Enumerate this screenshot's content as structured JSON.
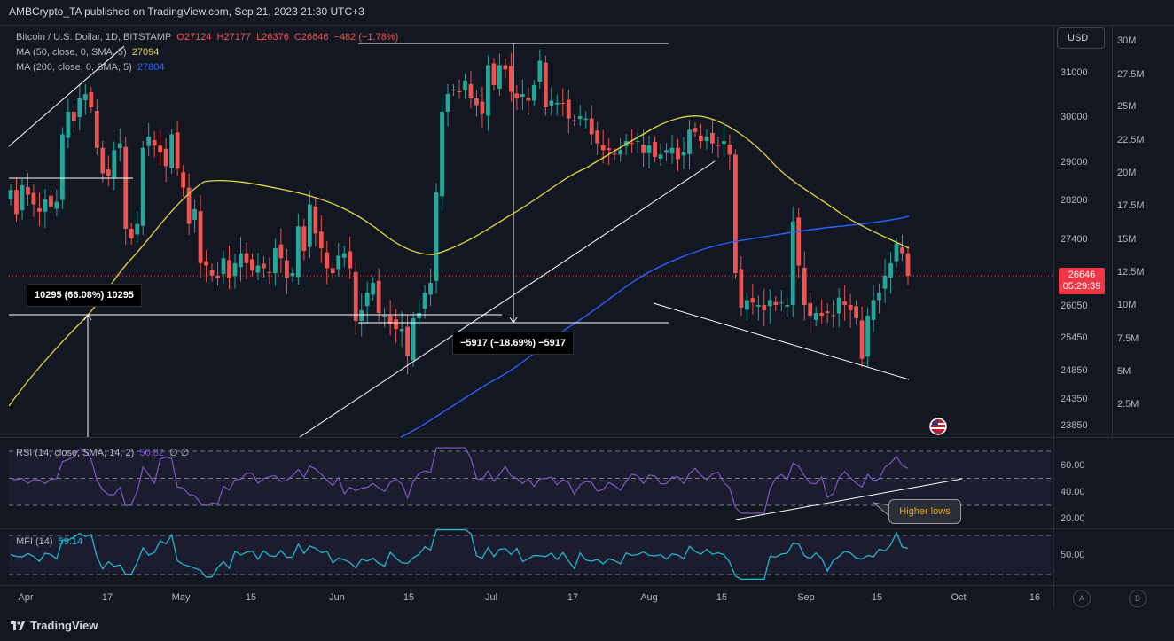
{
  "header": {
    "publisher_line": "AMBCrypto_TA published on TradingView.com, Sep 21, 2023 21:30 UTC+3"
  },
  "legend": {
    "symbol": "Bitcoin / U.S. Dollar, 1D, BITSTAMP",
    "ohlc": {
      "o": "O27124",
      "h": "H27177",
      "l": "L26376",
      "c": "C26646",
      "chg": "−482 (−1.78%)"
    },
    "ma50_label": "MA (50, close, 0, SMA, 5)",
    "ma50_value": "27094",
    "ma200_label": "MA (200, close, 0, SMA, 5)",
    "ma200_value": "27804",
    "rsi_label": "RSI (14, close, SMA, 14, 2)",
    "rsi_value": "50.82",
    "rsi_extra": "∅  ∅",
    "mfi_label": "MFI (14)",
    "mfi_value": "59.14"
  },
  "currency_button": "USD",
  "price_tag": {
    "price": "26646",
    "countdown": "05:29:39"
  },
  "measurements": {
    "left": "10295 (66.08%) 10295",
    "middle": "−5917 (−18.69%) −5917"
  },
  "annotation": "Higher lows",
  "footer": {
    "brand": "TradingView"
  },
  "bottom_buttons": {
    "a": "A",
    "b": "B"
  },
  "colors": {
    "background": "#131722",
    "up": "#26a69a",
    "down": "#ef5350",
    "ma50": "#e6d63c",
    "ma200": "#2962ff",
    "rsi": "#7e57c2",
    "mfi": "#22c0d6",
    "annotation": "#f7a600"
  },
  "chart_data": {
    "type": "candlestick",
    "price_axis_ticks": [
      "31000",
      "30000",
      "29000",
      "28200",
      "27400",
      "26650",
      "26050",
      "25450",
      "24850",
      "24350",
      "23850"
    ],
    "volume_axis_ticks": [
      "30M",
      "27.5M",
      "25M",
      "22.5M",
      "20M",
      "17.5M",
      "15M",
      "12.5M",
      "10M",
      "7.5M",
      "5M",
      "2.5M"
    ],
    "rsi_axis_ticks": [
      "60.00",
      "40.00",
      "20.00"
    ],
    "mfi_axis_ticks": [
      "50.00"
    ],
    "time_axis_ticks": [
      "Apr",
      "17",
      "May",
      "15",
      "Jun",
      "15",
      "Jul",
      "17",
      "Aug",
      "15",
      "Sep",
      "15",
      "Oct",
      "16"
    ],
    "last_price": 26646,
    "closes": [
      28400,
      27900,
      28500,
      28300,
      28100,
      27950,
      28200,
      28050,
      28150,
      29600,
      30100,
      29900,
      30400,
      30500,
      30200,
      29300,
      28750,
      28700,
      29250,
      29400,
      27600,
      27400,
      27700,
      29300,
      29550,
      29350,
      29200,
      28900,
      29600,
      28850,
      28450,
      27700,
      28000,
      26900,
      26850,
      26650,
      26600,
      27000,
      26600,
      26900,
      27100,
      26900,
      26750,
      26850,
      26800,
      26700,
      27200,
      27000,
      26600,
      26700,
      27650,
      27150,
      28100,
      27500,
      27200,
      26800,
      26700,
      27050,
      27100,
      26800,
      25750,
      25950,
      26300,
      26500,
      25900,
      25850,
      25700,
      25600,
      25600,
      25100,
      25800,
      25900,
      26300,
      26500,
      28350,
      30100,
      30500,
      30600,
      30550,
      30800,
      30400,
      30250,
      30050,
      31150,
      30700,
      31150,
      31050,
      30550,
      30400,
      30500,
      30350,
      30700,
      31250,
      30200,
      30350,
      30300,
      30290,
      29950,
      29900,
      30000,
      29950,
      29600,
      29400,
      29250,
      29250,
      29150,
      29250,
      29450,
      29400,
      29450,
      29180,
      29350,
      29100,
      29150,
      29250,
      29300,
      29050,
      29200,
      29700,
      29650,
      29450,
      29550,
      29400,
      29350,
      29450,
      29150,
      26700,
      26000,
      26150,
      26100,
      26050,
      25950,
      26150,
      26050,
      26100,
      26050,
      27750,
      26850,
      26050,
      25850,
      25900,
      25850,
      25900,
      25850,
      26200,
      26050,
      25950,
      25800,
      25050,
      25850,
      26150,
      26300,
      26650,
      26900,
      27300,
      27100,
      26646
    ],
    "ma50": {
      "name": "MA (50, close, 0, SMA, 5)",
      "value": 27094
    },
    "ma200": {
      "name": "MA (200, close, 0, SMA, 5)",
      "value": 27804
    },
    "rsi_last": 50.82,
    "mfi_last": 59.14
  }
}
